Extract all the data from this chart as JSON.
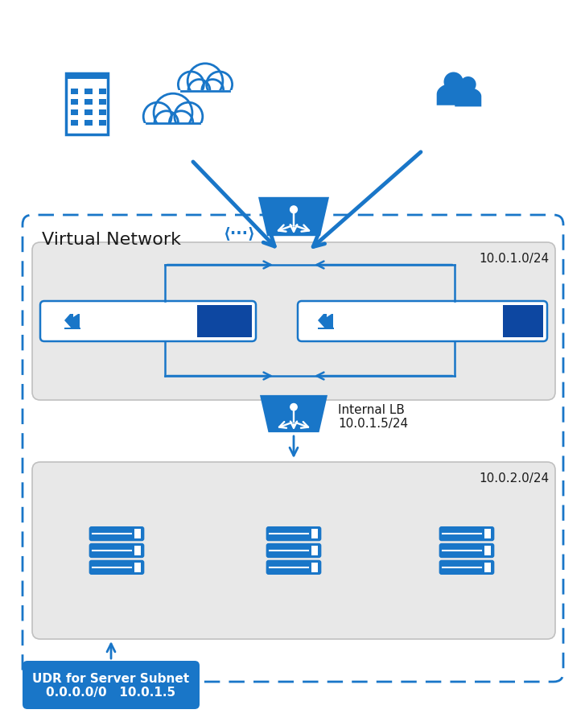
{
  "bg_color": "#ffffff",
  "blue": "#1976c8",
  "dark_blue": "#1565a5",
  "box_bg": "#e8e8e8",
  "box_border": "#c0c0c0",
  "vnet_border": "#1976c8",
  "udr_box_bg": "#1976c8",
  "udr_box_text": "#ffffff",
  "text_dark": "#1a1a1a",
  "text_gray": "#444444",
  "title_text": "Virtual Network",
  "subnet1_label": "10.0.1.0/24",
  "subnet2_label": "10.0.2.0/24",
  "internal_lb_label": "Internal LB\n10.0.1.5/24",
  "udr_label": "UDR for Server Subnet\n0.0.0.0/0   10.0.1.5",
  "fw_bar_color": "#1976c8",
  "fw_dark_bar": "#0d47a1"
}
